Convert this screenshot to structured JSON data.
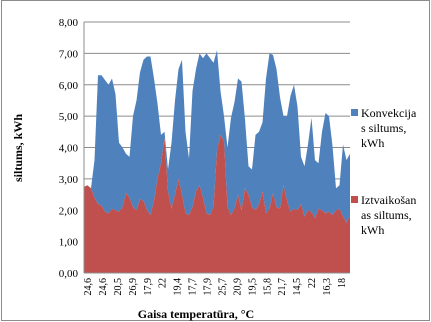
{
  "chart_data": {
    "type": "area",
    "title": "",
    "xlabel": "Gaisa temperatūra, ",
    "xlabel_unit": "°C",
    "ylabel": "siltums, kWh",
    "ylim": [
      0,
      8
    ],
    "yticks": [
      "0,00",
      "1,00",
      "2,00",
      "3,00",
      "4,00",
      "5,00",
      "6,00",
      "7,00",
      "8,00"
    ],
    "stacked": true,
    "grid": "horizontal",
    "legend": "right",
    "x_tick_labels": [
      "24,6",
      "24,6",
      "20,5",
      "26,9",
      "17,9",
      "22",
      "19,4",
      "17,7",
      "17,9",
      "25,7",
      "20,9",
      "19,5",
      "15,8",
      "21,7",
      "14,5",
      "22",
      "16,3",
      "18"
    ],
    "series": [
      {
        "name": "Iztvaikošanas siltums, kWh",
        "color": "#c0504d",
        "values": [
          2.75,
          2.8,
          2.7,
          2.4,
          2.2,
          2.15,
          1.95,
          1.9,
          2.05,
          2.0,
          1.95,
          2.1,
          2.55,
          2.4,
          2.1,
          2.0,
          2.35,
          2.3,
          2.0,
          1.85,
          2.3,
          3.0,
          3.5,
          4.3,
          2.6,
          2.05,
          2.5,
          3.0,
          2.5,
          1.9,
          1.85,
          2.1,
          2.6,
          2.8,
          2.4,
          1.9,
          1.85,
          2.1,
          3.9,
          4.4,
          4.2,
          2.1,
          1.85,
          2.05,
          2.5,
          2.0,
          2.7,
          2.5,
          2.1,
          2.0,
          2.2,
          2.6,
          1.9,
          2.05,
          2.55,
          2.1,
          2.05,
          2.8,
          2.3,
          1.95,
          2.05,
          2.0,
          2.2,
          1.8,
          2.0,
          1.95,
          1.75,
          2.05,
          2.0,
          1.9,
          1.95,
          1.85,
          2.0,
          2.05,
          1.8,
          1.6,
          1.85
        ]
      },
      {
        "name": "Konvekcijas siltums, kWh",
        "color": "#4f81bd",
        "values": [
          0.0,
          0.0,
          0.0,
          1.2,
          4.1,
          4.15,
          4.2,
          4.1,
          4.15,
          3.7,
          2.2,
          1.9,
          1.25,
          1.3,
          2.9,
          3.5,
          4.05,
          4.5,
          4.9,
          5.05,
          3.9,
          2.4,
          0.9,
          0.2,
          0.7,
          2.1,
          3.0,
          3.5,
          4.3,
          2.6,
          1.8,
          3.7,
          3.9,
          4.2,
          4.45,
          5.1,
          5.0,
          4.6,
          3.2,
          1.4,
          0.8,
          1.9,
          3.1,
          3.4,
          3.7,
          4.1,
          2.2,
          0.9,
          1.2,
          2.4,
          2.3,
          2.2,
          4.3,
          4.95,
          4.4,
          4.4,
          3.55,
          2.2,
          2.7,
          3.7,
          3.95,
          3.3,
          1.5,
          1.6,
          2.1,
          3.0,
          1.85,
          1.45,
          2.5,
          3.2,
          3.05,
          2.2,
          0.7,
          0.75,
          2.3,
          2.0,
          1.95
        ]
      }
    ]
  }
}
